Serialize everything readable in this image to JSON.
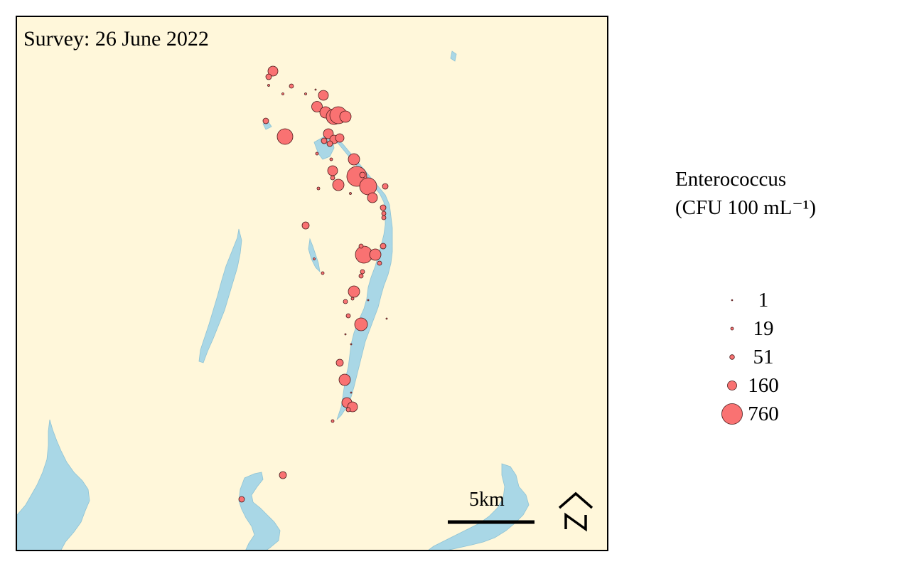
{
  "map": {
    "survey_label": "Survey: 26 June 2022",
    "scale_bar_label": "5km",
    "north_label": "N",
    "colors": {
      "land": "#fff7da",
      "water": "#a9d7e6",
      "marker_fill": "#f97272",
      "marker_stroke": "#4a1a1a",
      "frame": "#000000"
    }
  },
  "legend": {
    "title_line1": "Enterococcus",
    "title_line2": "(CFU 100 mL⁻¹)",
    "entries": [
      {
        "label": "1"
      },
      {
        "label": "19"
      },
      {
        "label": "51"
      },
      {
        "label": "160"
      },
      {
        "label": "760"
      }
    ]
  }
}
